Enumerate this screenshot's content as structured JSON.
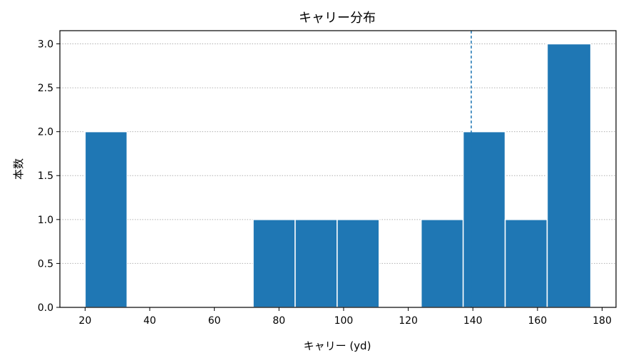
{
  "chart_data": {
    "type": "bar",
    "title": "キャリー分布",
    "xlabel": "キャリー (yd)",
    "ylabel": "本数",
    "bin_edges": [
      20,
      33,
      46,
      59,
      72,
      85,
      98,
      111,
      124,
      137,
      150,
      163,
      176.5
    ],
    "counts": [
      2,
      0,
      0,
      0,
      1,
      1,
      1,
      0,
      1,
      2,
      1,
      3
    ],
    "xticks": [
      20,
      40,
      60,
      80,
      100,
      120,
      140,
      160,
      180
    ],
    "xtick_labels": [
      "20",
      "40",
      "60",
      "80",
      "100",
      "120",
      "140",
      "160",
      "180"
    ],
    "yticks": [
      0,
      0.5,
      1,
      1.5,
      2,
      2.5,
      3
    ],
    "ytick_labels": [
      "0.0",
      "0.5",
      "1.0",
      "1.5",
      "2.0",
      "2.5",
      "3.0"
    ],
    "xlim": [
      12.2,
      184.3
    ],
    "ylim": [
      0,
      3.15
    ],
    "reference_line_x": 139.5,
    "grid": "horizontal-dotted",
    "bar_color": "#1f77b4",
    "reference_line_color": "#1f77b4"
  }
}
